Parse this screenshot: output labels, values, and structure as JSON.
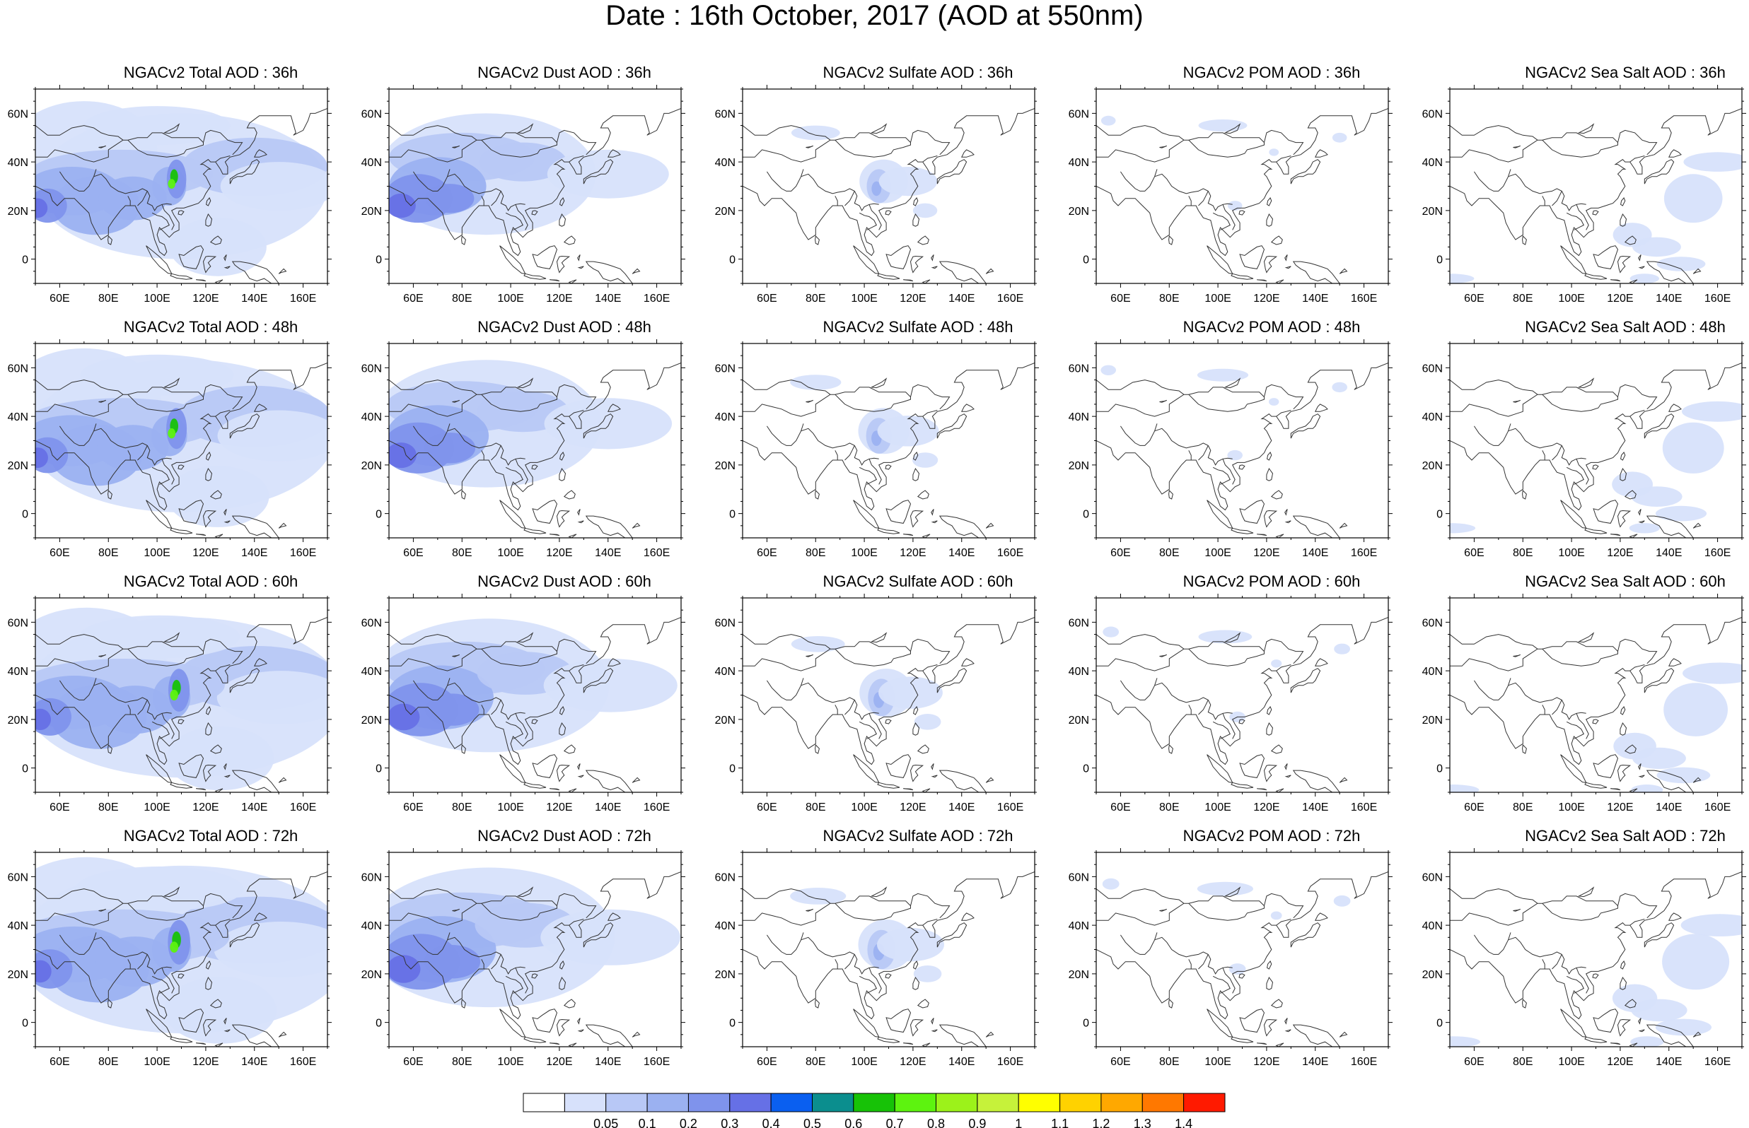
{
  "title": "Date : 16th October, 2017 (AOD at 550nm)",
  "lat_ticks": [
    "60N",
    "40N",
    "20N",
    "0"
  ],
  "lat_values": [
    60,
    40,
    20,
    0
  ],
  "lon_ticks": [
    "60E",
    "80E",
    "100E",
    "120E",
    "140E",
    "160E"
  ],
  "lon_values": [
    60,
    80,
    100,
    120,
    140,
    160
  ],
  "map_extent": {
    "lon_min": 50,
    "lon_max": 170,
    "lat_min": -10,
    "lat_max": 70
  },
  "panels": [
    [
      {
        "title": "NGACv2 Total AOD : 36h",
        "kind": "total"
      },
      {
        "title": "NGACv2 Dust AOD : 36h",
        "kind": "dust"
      },
      {
        "title": "NGACv2 Sulfate AOD : 36h",
        "kind": "sulfate"
      },
      {
        "title": "NGACv2 POM AOD : 36h",
        "kind": "pom"
      },
      {
        "title": "NGACv2 Sea Salt AOD : 36h",
        "kind": "seasalt"
      }
    ],
    [
      {
        "title": "NGACv2 Total AOD : 48h",
        "kind": "total"
      },
      {
        "title": "NGACv2 Dust AOD : 48h",
        "kind": "dust"
      },
      {
        "title": "NGACv2 Sulfate AOD : 48h",
        "kind": "sulfate"
      },
      {
        "title": "NGACv2 POM AOD : 48h",
        "kind": "pom"
      },
      {
        "title": "NGACv2 Sea Salt AOD : 48h",
        "kind": "seasalt"
      }
    ],
    [
      {
        "title": "NGACv2 Total AOD : 60h",
        "kind": "total"
      },
      {
        "title": "NGACv2 Dust AOD : 60h",
        "kind": "dust"
      },
      {
        "title": "NGACv2 Sulfate AOD : 60h",
        "kind": "sulfate"
      },
      {
        "title": "NGACv2 POM AOD : 60h",
        "kind": "pom"
      },
      {
        "title": "NGACv2 Sea Salt AOD : 60h",
        "kind": "seasalt"
      }
    ],
    [
      {
        "title": "NGACv2 Total AOD : 72h",
        "kind": "total"
      },
      {
        "title": "NGACv2 Dust AOD : 72h",
        "kind": "dust"
      },
      {
        "title": "NGACv2 Sulfate AOD : 72h",
        "kind": "sulfate"
      },
      {
        "title": "NGACv2 POM AOD : 72h",
        "kind": "pom"
      },
      {
        "title": "NGACv2 Sea Salt  AOD : 72h",
        "kind": "seasalt"
      }
    ]
  ],
  "colorbar": {
    "labels": [
      "0.05",
      "0.1",
      "0.2",
      "0.3",
      "0.4",
      "0.5",
      "0.6",
      "0.7",
      "0.8",
      "0.9",
      "1",
      "1.1",
      "1.2",
      "1.3",
      "1.4"
    ],
    "colors": [
      "#ffffff",
      "#d7e1fb",
      "#b8c8f6",
      "#9bb1f1",
      "#7f93ec",
      "#6670e6",
      "#0a5ff0",
      "#0b8e8e",
      "#17c207",
      "#5df30f",
      "#9cf21a",
      "#c6f23a",
      "#ffff00",
      "#ffd200",
      "#ffa800",
      "#ff7800",
      "#ff1a00"
    ]
  }
}
